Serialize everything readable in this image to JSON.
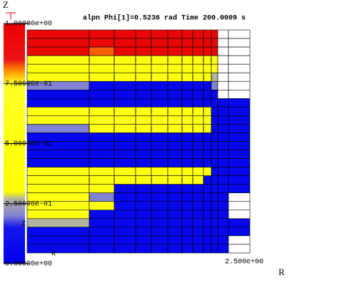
{
  "title": "alpn Phi[1]=0.5236 rad Time 200.0009 s",
  "axis_labels": {
    "z": "Z",
    "r": "R"
  },
  "inner_labels": {
    "z": "Z",
    "r": "R"
  },
  "r_tick": "2.500e+00",
  "colorbar": {
    "lim": [
      0,
      1
    ],
    "ticks": [
      {
        "value": 1,
        "label": "1.00000e+00"
      },
      {
        "value": 0.75,
        "label": "7.50000e-01"
      },
      {
        "value": 0.5,
        "label": "5.00000e-01"
      },
      {
        "value": 0.25,
        "label": "2.50000e-01"
      },
      {
        "value": 0,
        "label": "0.00000e+00"
      }
    ]
  },
  "field": {
    "values": [
      [
        0.95,
        0.95,
        0.95,
        0.95,
        0.95,
        0.95,
        0.95,
        0.95,
        0.95,
        0.95,
        null,
        null
      ],
      [
        0.95,
        0.95,
        0.95,
        0.95,
        0.95,
        0.95,
        0.95,
        0.95,
        0.95,
        0.95,
        null,
        null
      ],
      [
        0.95,
        0.82,
        0.95,
        0.95,
        0.95,
        0.95,
        0.95,
        0.95,
        0.95,
        0.95,
        null,
        null
      ],
      [
        0.5,
        0.5,
        0.5,
        0.5,
        0.5,
        0.5,
        0.5,
        0.5,
        0.5,
        0.5,
        null,
        null
      ],
      [
        0.5,
        0.5,
        0.5,
        0.5,
        0.5,
        0.5,
        0.5,
        0.5,
        0.5,
        0.5,
        null,
        null
      ],
      [
        0.5,
        0.5,
        0.5,
        0.5,
        0.5,
        0.5,
        0.5,
        0.5,
        0.5,
        0.27,
        null,
        null
      ],
      [
        0.2,
        0.05,
        0.05,
        0.05,
        0.05,
        0.05,
        0.05,
        0.05,
        0.05,
        0.2,
        null,
        null
      ],
      [
        0.05,
        0.05,
        0.05,
        0.05,
        0.05,
        0.05,
        0.05,
        0.05,
        0.05,
        0.05,
        null,
        null
      ],
      [
        0.05,
        0.05,
        0.05,
        0.05,
        0.05,
        0.05,
        0.05,
        0.05,
        0.05,
        0.05,
        0.05,
        0.05
      ],
      [
        0.5,
        0.5,
        0.5,
        0.5,
        0.5,
        0.5,
        0.5,
        0.5,
        0.5,
        0.05,
        0.05,
        0.05
      ],
      [
        0.5,
        0.5,
        0.5,
        0.5,
        0.5,
        0.5,
        0.5,
        0.5,
        0.5,
        0.05,
        0.05,
        0.05
      ],
      [
        0.2,
        0.5,
        0.5,
        0.5,
        0.5,
        0.5,
        0.5,
        0.5,
        0.5,
        0.05,
        0.05,
        0.05
      ],
      [
        0.05,
        0.05,
        0.05,
        0.05,
        0.05,
        0.05,
        0.05,
        0.05,
        0.05,
        0.05,
        0.05,
        0.05
      ],
      [
        0.05,
        0.05,
        0.05,
        0.05,
        0.05,
        0.05,
        0.05,
        0.05,
        0.05,
        0.05,
        0.05,
        0.05
      ],
      [
        0.05,
        0.05,
        0.05,
        0.05,
        0.05,
        0.05,
        0.05,
        0.05,
        0.05,
        0.05,
        0.05,
        0.05
      ],
      [
        0.05,
        0.05,
        0.05,
        0.05,
        0.05,
        0.05,
        0.05,
        0.05,
        0.05,
        0.05,
        0.05,
        0.05
      ],
      [
        0.5,
        0.5,
        0.5,
        0.5,
        0.5,
        0.5,
        0.5,
        0.5,
        0.5,
        0.05,
        0.05,
        0.05
      ],
      [
        0.5,
        0.5,
        0.5,
        0.5,
        0.5,
        0.5,
        0.5,
        0.5,
        0.05,
        0.05,
        0.05,
        0.05
      ],
      [
        0.5,
        0.5,
        0.05,
        0.05,
        0.05,
        0.05,
        0.05,
        0.05,
        0.05,
        0.05,
        0.05,
        0.05
      ],
      [
        0.5,
        0.2,
        0.05,
        0.05,
        0.05,
        0.05,
        0.05,
        0.05,
        0.05,
        0.05,
        0.05,
        null
      ],
      [
        0.5,
        0.5,
        0.05,
        0.05,
        0.05,
        0.05,
        0.05,
        0.05,
        0.05,
        0.05,
        0.05,
        null
      ],
      [
        0.5,
        0.05,
        0.05,
        0.05,
        0.05,
        0.05,
        0.05,
        0.05,
        0.05,
        0.05,
        0.05,
        null
      ],
      [
        0.27,
        0.05,
        0.05,
        0.05,
        0.05,
        0.05,
        0.05,
        0.05,
        0.05,
        0.05,
        0.05,
        0.05
      ],
      [
        0.05,
        0.05,
        0.05,
        0.05,
        0.05,
        0.05,
        0.05,
        0.05,
        0.05,
        0.05,
        0.05,
        0.05
      ],
      [
        0.05,
        0.05,
        0.05,
        0.05,
        0.05,
        0.05,
        0.05,
        0.05,
        0.05,
        0.05,
        0.05,
        null
      ],
      [
        0.05,
        0.05,
        0.05,
        0.05,
        0.05,
        0.05,
        0.05,
        0.05,
        0.05,
        0.05,
        0.05,
        null
      ]
    ]
  }
}
